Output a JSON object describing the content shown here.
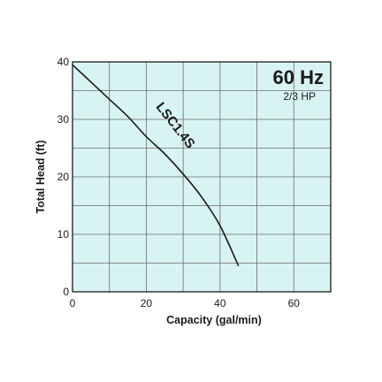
{
  "chart_data": {
    "type": "line",
    "title": "",
    "xlabel": "Capacity (gal/min)",
    "ylabel": "Total Head (ft)",
    "xlim": [
      0,
      70
    ],
    "ylim": [
      0,
      40
    ],
    "x_ticks": [
      0,
      20,
      40,
      60
    ],
    "y_ticks": [
      0,
      10,
      20,
      30,
      40
    ],
    "grid": true,
    "background_color": "#d8f4f2",
    "grid_color": "#6a6a6a",
    "line_color": "#1a1a1a",
    "annotations": {
      "frequency": "60 Hz",
      "power": "2/3 HP"
    },
    "series": [
      {
        "name": "LSC1.4S",
        "x": [
          0,
          5,
          10,
          15,
          20,
          25,
          30,
          35,
          40,
          45
        ],
        "y": [
          39.5,
          36.5,
          33.5,
          30.5,
          27.0,
          24.0,
          20.5,
          16.5,
          11.5,
          4.5
        ]
      }
    ]
  }
}
